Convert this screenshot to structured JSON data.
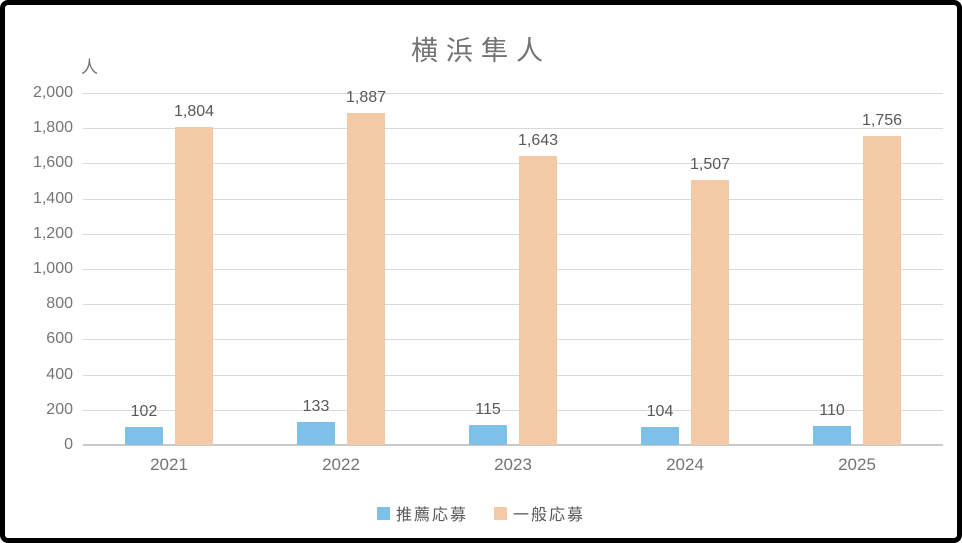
{
  "chart_data": {
    "type": "bar",
    "title": "横浜隼人",
    "unit_label": "人",
    "categories": [
      "2021",
      "2022",
      "2023",
      "2024",
      "2025"
    ],
    "series": [
      {
        "name": "推薦応募",
        "semantic": "recommended-applications",
        "color": "#7EC0E8",
        "values": [
          102,
          133,
          115,
          104,
          110
        ],
        "labels": [
          "102",
          "133",
          "115",
          "104",
          "110"
        ]
      },
      {
        "name": "一般応募",
        "semantic": "general-applications",
        "color": "#F4C9A6",
        "values": [
          1804,
          1887,
          1643,
          1507,
          1756
        ],
        "labels": [
          "1,804",
          "1,887",
          "1,643",
          "1,507",
          "1,756"
        ]
      }
    ],
    "ylim": [
      0,
      2000
    ],
    "ytick_step": 200,
    "yticks": [
      "0",
      "200",
      "400",
      "600",
      "800",
      "1,000",
      "1,200",
      "1,400",
      "1,600",
      "1,800",
      "2,000"
    ],
    "grid": true,
    "legend_position": "bottom",
    "colors": {
      "gridline": "#D9D9D9",
      "axis_line": "#C9C9C9",
      "title_text": "#737373",
      "axis_text": "#757575",
      "data_label_text": "#595959",
      "frame_border": "#000000"
    }
  }
}
